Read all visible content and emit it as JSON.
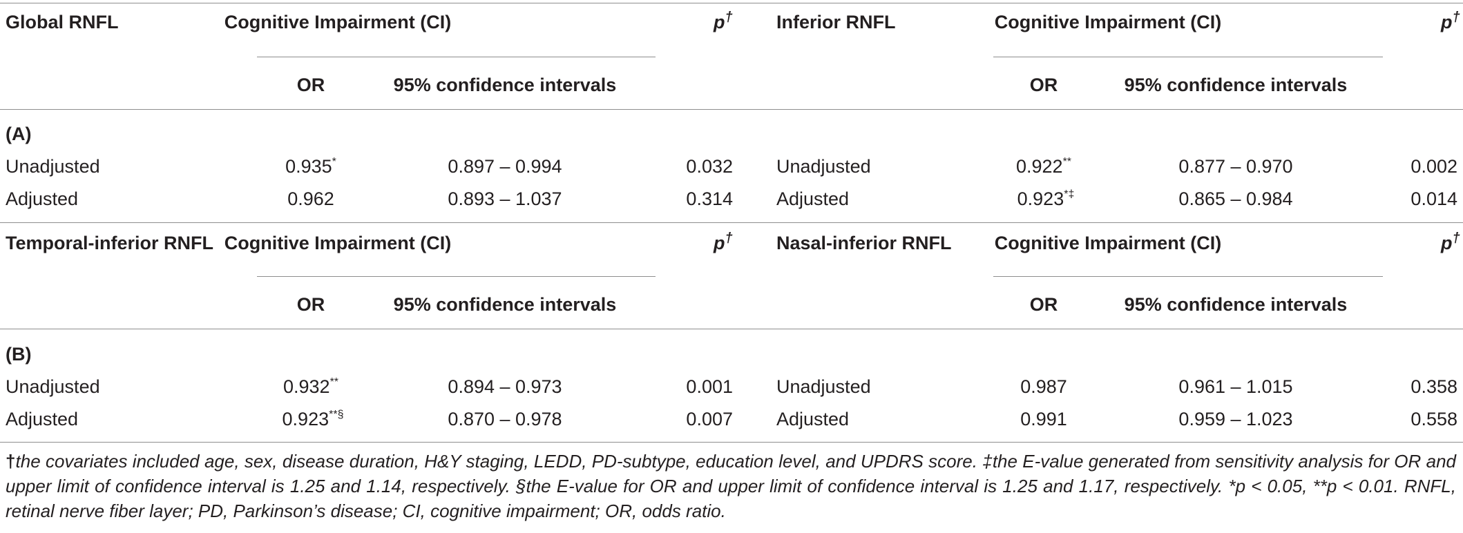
{
  "blocks": [
    {
      "left": {
        "row_label": "Global RNFL",
        "group_header": "Cognitive Impairment (CI)",
        "p_header": "p",
        "p_mark": "†",
        "or_header": "OR",
        "ci_header": "95% confidence intervals",
        "section": "(A)",
        "rows": [
          {
            "label": "Unadjusted",
            "or": "0.935",
            "mark": "*",
            "ci": "0.897 – 0.994",
            "p": "0.032"
          },
          {
            "label": "Adjusted",
            "or": "0.962",
            "mark": "",
            "ci": "0.893 – 1.037",
            "p": "0.314"
          }
        ]
      },
      "right": {
        "row_label": "Inferior RNFL",
        "group_header": "Cognitive Impairment (CI)",
        "p_header": "p",
        "p_mark": "†",
        "or_header": "OR",
        "ci_header": "95% confidence intervals",
        "rows": [
          {
            "label": "Unadjusted",
            "or": "0.922",
            "mark": "**",
            "ci": "0.877 – 0.970",
            "p": "0.002"
          },
          {
            "label": "Adjusted",
            "or": "0.923",
            "mark": "*‡",
            "ci": "0.865 – 0.984",
            "p": "0.014"
          }
        ]
      }
    },
    {
      "left": {
        "row_label": "Temporal-inferior RNFL",
        "group_header": "Cognitive Impairment (CI)",
        "p_header": "p",
        "p_mark": "†",
        "or_header": "OR",
        "ci_header": "95% confidence intervals",
        "section": "(B)",
        "rows": [
          {
            "label": "Unadjusted",
            "or": "0.932",
            "mark": "**",
            "ci": "0.894 – 0.973",
            "p": "0.001"
          },
          {
            "label": "Adjusted",
            "or": "0.923",
            "mark": "**§",
            "ci": "0.870 – 0.978",
            "p": "0.007"
          }
        ]
      },
      "right": {
        "row_label": "Nasal-inferior RNFL",
        "group_header": "Cognitive Impairment (CI)",
        "p_header": "p",
        "p_mark": "†",
        "or_header": "OR",
        "ci_header": "95% confidence intervals",
        "rows": [
          {
            "label": "Unadjusted",
            "or": "0.987",
            "mark": "",
            "ci": "0.961 – 1.015",
            "p": "0.358"
          },
          {
            "label": "Adjusted",
            "or": "0.991",
            "mark": "",
            "ci": "0.959 – 1.023",
            "p": "0.558"
          }
        ]
      }
    }
  ],
  "footnote": {
    "dagger": "†",
    "text": "the covariates included age, sex, disease duration, H&Y staging, LEDD, PD-subtype, education level, and UPDRS score. ‡the E-value generated from sensitivity analysis for OR and upper limit of confidence interval is 1.25 and 1.14, respectively. §the E-value for OR and upper limit of confidence interval is 1.25 and 1.17, respectively. *p < 0.05, **p < 0.01. RNFL, retinal nerve fiber layer; PD, Parkinson’s disease; CI, cognitive impairment; OR, odds ratio."
  }
}
